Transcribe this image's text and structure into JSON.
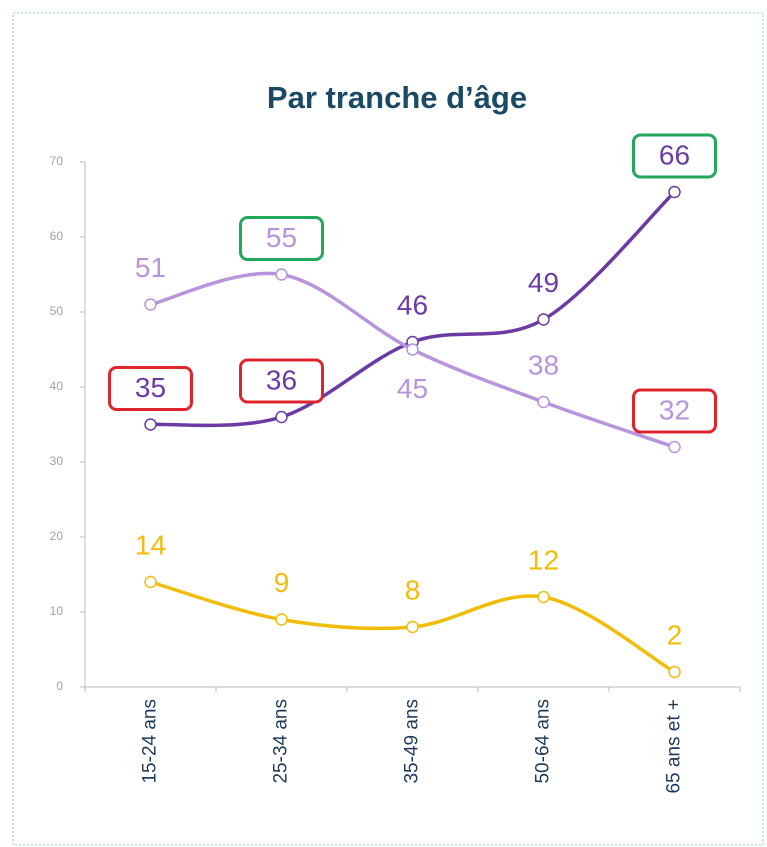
{
  "chart_data": {
    "type": "line",
    "title": "Par tranche d’âge",
    "categories": [
      "15-24 ans",
      "25-34 ans",
      "35-49 ans",
      "50-64 ans",
      "65 ans et +"
    ],
    "series": [
      {
        "color": "#6b3ba3",
        "values": [
          35,
          36,
          46,
          49,
          66
        ],
        "label_positions": [
          "above",
          "above",
          "above",
          "above",
          "above"
        ],
        "label_boxes": [
          "#e0242c",
          "#e0242c",
          null,
          null,
          "#22a85a"
        ]
      },
      {
        "color": "#b894dc",
        "values": [
          51,
          55,
          45,
          38,
          32
        ],
        "label_positions": [
          "above",
          "above",
          "below",
          "above",
          "above"
        ],
        "label_boxes": [
          null,
          "#22a85a",
          null,
          null,
          "#e0242c"
        ]
      },
      {
        "color": "#f2bc0a",
        "values": [
          14,
          9,
          8,
          12,
          2
        ],
        "label_positions": [
          "above",
          "above",
          "above",
          "above",
          "above"
        ],
        "label_boxes": [
          null,
          null,
          null,
          null,
          null
        ]
      }
    ],
    "ylim": [
      0,
      70
    ],
    "yticks": [
      0,
      10,
      20,
      30,
      40,
      50,
      60,
      70
    ],
    "grid": false
  }
}
